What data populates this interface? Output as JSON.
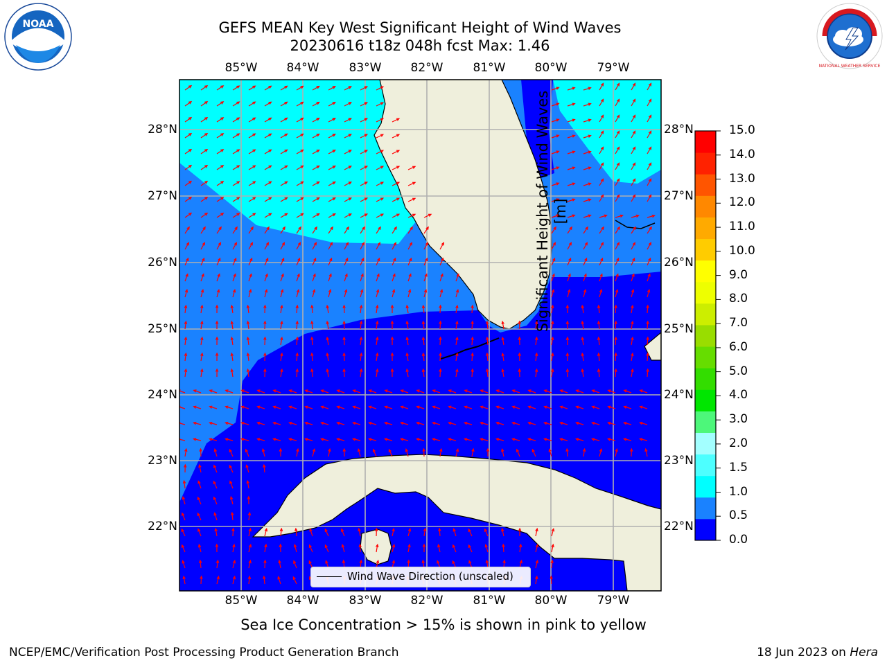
{
  "title": {
    "line1": "GEFS MEAN Key West Significant Height of Wind Waves",
    "line2": "20230616 t18z 048h fcst   Max: 1.46"
  },
  "axes": {
    "lon_labels": [
      "85°W",
      "84°W",
      "83°W",
      "82°W",
      "81°W",
      "80°W",
      "79°W"
    ],
    "lat_labels": [
      "28°N",
      "27°N",
      "26°N",
      "25°N",
      "24°N",
      "23°N",
      "22°N"
    ]
  },
  "colorbar": {
    "label": "Significant Height of Wind Waves [m]",
    "ticks": [
      "15.0",
      "14.0",
      "13.0",
      "12.0",
      "11.0",
      "10.0",
      "9.0",
      "8.0",
      "7.0",
      "6.0",
      "5.0",
      "4.0",
      "3.0",
      "2.0",
      "1.5",
      "1.0",
      "0.5",
      "0.0"
    ],
    "colors": [
      "#0000ff",
      "#1a82ff",
      "#00ffff",
      "#4dffff",
      "#a3ffff",
      "#4df77a",
      "#00e600",
      "#33dd00",
      "#66dd00",
      "#99dd00",
      "#ccee00",
      "#eeff00",
      "#ffff00",
      "#ffcc00",
      "#ffaa00",
      "#ff8800",
      "#ff5500",
      "#ff2200",
      "#ff0000"
    ]
  },
  "legend": {
    "label": "Wind Wave Direction (unscaled)"
  },
  "footnote": "Sea Ice Concentration > 15% is shown in pink to yellow",
  "credits": {
    "left": "NCEP/EMC/Verification Post Processing Product Generation Branch",
    "right_date": "18 Jun 2023 on ",
    "right_host": "Hera"
  },
  "logos": {
    "noaa_text": "NOAA",
    "nws_text": "NATIONAL WEATHER SERVICE"
  },
  "map_colors": {
    "wave_0_0_5": "#0000ff",
    "wave_0_5_1_0": "#1a82ff",
    "wave_1_0_1_5": "#00ffff",
    "land": "#efefdc",
    "arrows": "#ff0000",
    "grid": "#b0b0b0"
  }
}
